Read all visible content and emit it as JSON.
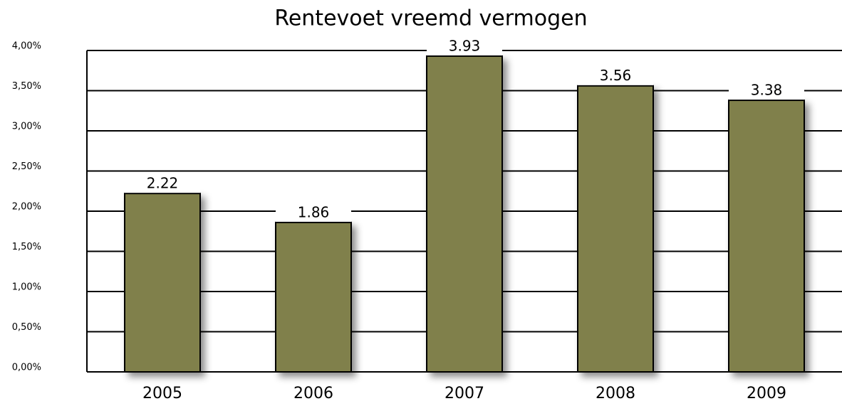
{
  "chart_data": {
    "type": "bar",
    "title": "Rentevoet vreemd vermogen",
    "categories": [
      "2005",
      "2006",
      "2007",
      "2008",
      "2009"
    ],
    "values": [
      2.22,
      1.86,
      3.93,
      3.56,
      3.38
    ],
    "color": "#80804b",
    "ylim": [
      0,
      4
    ],
    "yticks": [
      {
        "value": 0,
        "label": "0,00%"
      },
      {
        "value": 0.5,
        "label": "0,50%"
      },
      {
        "value": 1,
        "label": "1,00%"
      },
      {
        "value": 1.5,
        "label": "1,50%"
      },
      {
        "value": 2,
        "label": "2,00%"
      },
      {
        "value": 2.5,
        "label": "2,50%"
      },
      {
        "value": 3,
        "label": "3,00%"
      },
      {
        "value": 3.5,
        "label": "3,50%"
      },
      {
        "value": 4,
        "label": "4,00%"
      }
    ],
    "grid": true
  }
}
